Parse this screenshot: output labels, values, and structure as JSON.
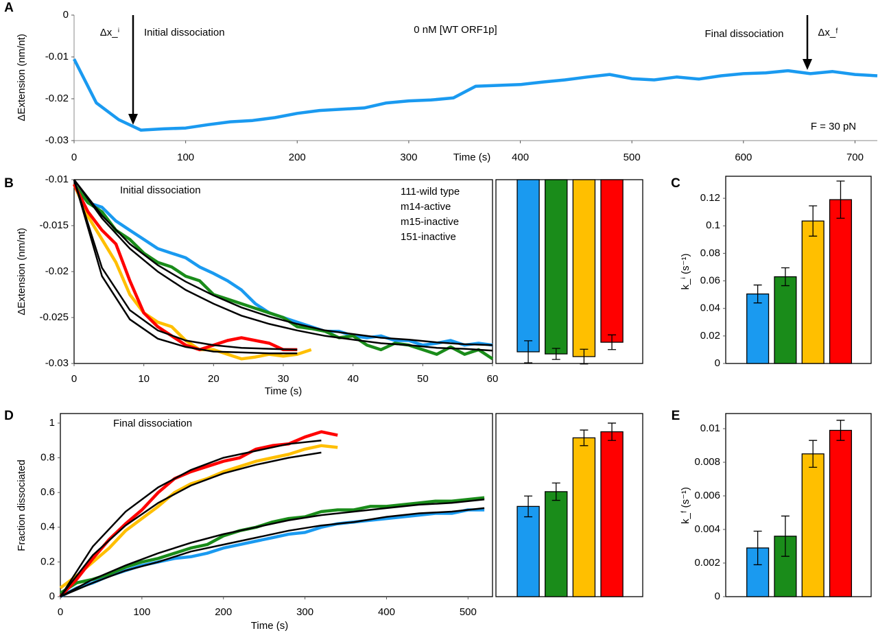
{
  "chart_data": [
    {
      "type": "line",
      "panel": "A",
      "ylabel": "ΔExtension (nm/nt)",
      "xlabel": "Time (s)",
      "annotations": [
        "Δx_ⁱ",
        "Initial dissociation",
        "0 nM [WT ORF1p]",
        "Final dissociation",
        "Δx_ᶠ",
        "F = 30 pN"
      ],
      "x": [
        0,
        20,
        40,
        60,
        80,
        100,
        120,
        140,
        160,
        180,
        200,
        220,
        240,
        260,
        280,
        300,
        320,
        340,
        360,
        380,
        400,
        420,
        440,
        460,
        480,
        500,
        520,
        540,
        560,
        580,
        600,
        620,
        640,
        660,
        680,
        700,
        720
      ],
      "series": [
        {
          "color": "#1a9af0",
          "values": [
            -0.0105,
            -0.021,
            -0.025,
            -0.0275,
            -0.0272,
            -0.027,
            -0.0262,
            -0.0255,
            -0.0252,
            -0.0245,
            -0.0235,
            -0.0228,
            -0.0225,
            -0.0222,
            -0.021,
            -0.0205,
            -0.0203,
            -0.0198,
            -0.017,
            -0.0168,
            -0.0166,
            -0.016,
            -0.0155,
            -0.0148,
            -0.0142,
            -0.0152,
            -0.0155,
            -0.0148,
            -0.0153,
            -0.0145,
            -0.014,
            -0.0138,
            -0.0133,
            -0.014,
            -0.0135,
            -0.0142,
            -0.0145
          ]
        }
      ],
      "xlim": [
        0,
        720
      ],
      "xticks": [
        0,
        100,
        200,
        300,
        400,
        500,
        600,
        700
      ],
      "ylim": [
        -0.03,
        0
      ],
      "yticks": [
        0,
        -0.01,
        -0.02,
        -0.03
      ]
    },
    {
      "type": "line",
      "panel": "B",
      "title": "Initial dissociation",
      "ylabel": "ΔExtension (nm/nt)",
      "xlabel": "Time (s)",
      "x": [
        0,
        2,
        4,
        6,
        8,
        10,
        12,
        14,
        16,
        18,
        20,
        22,
        24,
        26,
        28,
        30,
        32,
        34,
        36,
        38,
        40,
        42,
        44,
        46,
        48,
        50,
        52,
        54,
        56,
        58,
        60
      ],
      "series": [
        {
          "name": "111-wild type",
          "color": "#1a9af0",
          "values": [
            -0.0105,
            -0.0125,
            -0.013,
            -0.0145,
            -0.0155,
            -0.0165,
            -0.0175,
            -0.018,
            -0.0185,
            -0.0195,
            -0.0202,
            -0.021,
            -0.022,
            -0.0235,
            -0.0245,
            -0.025,
            -0.0255,
            -0.026,
            -0.0265,
            -0.0265,
            -0.027,
            -0.0272,
            -0.027,
            -0.0275,
            -0.0275,
            -0.028,
            -0.0278,
            -0.0275,
            -0.028,
            -0.0278,
            -0.028
          ]
        },
        {
          "name": "m14-active",
          "color": "#1a8c1a",
          "values": [
            -0.0105,
            -0.0125,
            -0.0135,
            -0.0155,
            -0.0165,
            -0.018,
            -0.019,
            -0.0195,
            -0.0205,
            -0.021,
            -0.0225,
            -0.023,
            -0.0235,
            -0.024,
            -0.0245,
            -0.025,
            -0.026,
            -0.0262,
            -0.0265,
            -0.0272,
            -0.027,
            -0.028,
            -0.0285,
            -0.0278,
            -0.028,
            -0.0285,
            -0.029,
            -0.0282,
            -0.029,
            -0.0285,
            -0.0295
          ]
        },
        {
          "name": "m15-inactive",
          "color": "#ffbf00",
          "values": [
            -0.0105,
            -0.014,
            -0.0165,
            -0.019,
            -0.0225,
            -0.0245,
            -0.0255,
            -0.026,
            -0.0275,
            -0.0285,
            -0.0285,
            -0.029,
            -0.0295,
            -0.0293,
            -0.029,
            -0.0292,
            -0.029,
            -0.0285,
            null,
            null,
            null,
            null,
            null,
            null,
            null,
            null,
            null,
            null,
            null,
            null,
            null
          ]
        },
        {
          "name": "151-inactive",
          "color": "#ff0000",
          "values": [
            -0.0105,
            -0.0135,
            -0.0155,
            -0.017,
            -0.021,
            -0.0245,
            -0.026,
            -0.027,
            -0.028,
            -0.0285,
            -0.028,
            -0.0275,
            -0.0272,
            -0.0275,
            -0.0278,
            -0.0285,
            -0.0285,
            null,
            null,
            null,
            null,
            null,
            null,
            null,
            null,
            null,
            null,
            null,
            null,
            null,
            null
          ]
        }
      ],
      "fit_x": [
        0,
        4,
        8,
        12,
        16,
        20,
        24,
        28,
        32,
        36,
        40,
        44,
        48,
        52,
        56,
        60
      ],
      "fits": [
        {
          "color": "#000000",
          "values": [
            -0.01,
            -0.0139,
            -0.017,
            -0.0193,
            -0.0211,
            -0.0226,
            -0.0239,
            -0.0249,
            -0.0257,
            -0.0264,
            -0.0268,
            -0.0272,
            -0.0274,
            -0.0277,
            -0.0279,
            -0.028
          ]
        },
        {
          "color": "#000000",
          "values": [
            -0.01,
            -0.0142,
            -0.0175,
            -0.02,
            -0.022,
            -0.0235,
            -0.0248,
            -0.0257,
            -0.0264,
            -0.027,
            -0.0274,
            -0.0278,
            -0.028,
            -0.0283,
            -0.0284,
            -0.0286
          ]
        },
        {
          "color": "#000000",
          "values": [
            -0.01,
            -0.0205,
            -0.0252,
            -0.0273,
            -0.0282,
            -0.0287,
            -0.0288,
            -0.0289,
            -0.0289,
            null,
            null,
            null,
            null,
            null,
            null,
            null
          ]
        },
        {
          "color": "#000000",
          "values": [
            -0.01,
            -0.0196,
            -0.0242,
            -0.0264,
            -0.0275,
            -0.028,
            -0.0283,
            -0.0284,
            -0.0285,
            null,
            null,
            null,
            null,
            null,
            null,
            null
          ]
        }
      ],
      "xlim": [
        0,
        60
      ],
      "xticks": [
        0,
        10,
        20,
        30,
        40,
        50,
        60
      ],
      "ylim": [
        -0.03,
        -0.01
      ],
      "yticks": [
        -0.01,
        -0.015,
        -0.02,
        -0.025,
        -0.03
      ],
      "legend": "top-right"
    },
    {
      "type": "bar",
      "values": [
        -0.02873,
        -0.02896,
        -0.02925,
        -0.02769
      ],
      "errors": [
        0.0012,
        0.0006,
        0.0008,
        0.0008
      ],
      "colors": [
        "#1a9af0",
        "#1a8c1a",
        "#ffbf00",
        "#ff0000"
      ],
      "ylim": [
        -0.03,
        -0.01
      ]
    },
    {
      "type": "bar",
      "panel": "C",
      "ylabel": "k_ⁱ (s⁻¹)",
      "values": [
        0.0505,
        0.063,
        0.1035,
        0.119
      ],
      "errors": [
        0.0065,
        0.0065,
        0.011,
        0.0135
      ],
      "colors": [
        "#1a9af0",
        "#1a8c1a",
        "#ffbf00",
        "#ff0000"
      ],
      "ylim": [
        0,
        0.136
      ],
      "yticks": [
        0,
        0.02,
        0.04,
        0.06,
        0.08,
        0.1,
        0.12
      ]
    },
    {
      "type": "line",
      "panel": "D",
      "title": "Final dissociation",
      "ylabel": "Fraction dissociated",
      "xlabel": "Time (s)",
      "x": [
        0,
        20,
        40,
        60,
        80,
        100,
        120,
        140,
        160,
        180,
        200,
        220,
        240,
        260,
        280,
        300,
        320,
        340,
        360,
        380,
        400,
        420,
        440,
        460,
        480,
        500,
        520
      ],
      "series": [
        {
          "color": "#1a9af0",
          "values": [
            0,
            0.05,
            0.08,
            0.12,
            0.15,
            0.18,
            0.2,
            0.22,
            0.23,
            0.25,
            0.28,
            0.3,
            0.32,
            0.34,
            0.36,
            0.37,
            0.4,
            0.42,
            0.43,
            0.44,
            0.45,
            0.46,
            0.47,
            0.48,
            0.48,
            0.5,
            0.5
          ]
        },
        {
          "color": "#1a8c1a",
          "values": [
            0.02,
            0.08,
            0.1,
            0.13,
            0.17,
            0.2,
            0.22,
            0.25,
            0.28,
            0.3,
            0.35,
            0.38,
            0.4,
            0.43,
            0.45,
            0.46,
            0.49,
            0.5,
            0.5,
            0.52,
            0.52,
            0.53,
            0.54,
            0.55,
            0.55,
            0.56,
            0.57
          ]
        },
        {
          "color": "#ffbf00",
          "values": [
            0.05,
            0.12,
            0.2,
            0.28,
            0.38,
            0.45,
            0.52,
            0.6,
            0.65,
            0.68,
            0.72,
            0.75,
            0.78,
            0.8,
            0.82,
            0.85,
            0.87,
            0.86,
            null,
            null,
            null,
            null,
            null,
            null,
            null,
            null,
            null
          ]
        },
        {
          "color": "#ff0000",
          "values": [
            0,
            0.1,
            0.22,
            0.33,
            0.42,
            0.5,
            0.6,
            0.68,
            0.72,
            0.75,
            0.78,
            0.8,
            0.85,
            0.87,
            0.88,
            0.92,
            0.95,
            0.93,
            null,
            null,
            null,
            null,
            null,
            null,
            null,
            null,
            null
          ]
        }
      ],
      "fit_x": [
        0,
        40,
        80,
        120,
        160,
        200,
        240,
        280,
        320,
        360,
        400,
        440,
        480,
        520
      ],
      "fits": [
        {
          "color": "#000000",
          "values": [
            0,
            0.08,
            0.15,
            0.2,
            0.26,
            0.3,
            0.34,
            0.38,
            0.41,
            0.43,
            0.46,
            0.48,
            0.49,
            0.51
          ]
        },
        {
          "color": "#000000",
          "values": [
            0,
            0.1,
            0.18,
            0.25,
            0.31,
            0.36,
            0.4,
            0.44,
            0.47,
            0.49,
            0.51,
            0.53,
            0.54,
            0.56
          ]
        },
        {
          "color": "#000000",
          "values": [
            0,
            0.24,
            0.41,
            0.54,
            0.64,
            0.71,
            0.76,
            0.8,
            0.83,
            null,
            null,
            null,
            null,
            null
          ]
        },
        {
          "color": "#000000",
          "values": [
            0,
            0.29,
            0.49,
            0.63,
            0.73,
            0.8,
            0.84,
            0.88,
            0.9,
            null,
            null,
            null,
            null,
            null
          ]
        }
      ],
      "xlim": [
        0,
        530
      ],
      "xticks": [
        0,
        100,
        200,
        300,
        400,
        500
      ],
      "ylim": [
        0,
        1.055
      ],
      "yticks": [
        0,
        0.2,
        0.4,
        0.6,
        0.8,
        1
      ]
    },
    {
      "type": "bar",
      "values": [
        0.52,
        0.605,
        0.915,
        0.95
      ],
      "errors": [
        0.06,
        0.05,
        0.045,
        0.05
      ],
      "colors": [
        "#1a9af0",
        "#1a8c1a",
        "#ffbf00",
        "#ff0000"
      ],
      "ylim": [
        0,
        1.055
      ]
    },
    {
      "type": "bar",
      "panel": "E",
      "ylabel": "k_ᶠ (s⁻¹)",
      "values": [
        0.0029,
        0.0036,
        0.0085,
        0.0099
      ],
      "errors": [
        0.001,
        0.0012,
        0.0008,
        0.0006
      ],
      "colors": [
        "#1a9af0",
        "#1a8c1a",
        "#ffbf00",
        "#ff0000"
      ],
      "ylim": [
        0,
        0.0109
      ],
      "yticks": [
        0,
        0.002,
        0.004,
        0.006,
        0.008,
        0.01
      ]
    }
  ]
}
